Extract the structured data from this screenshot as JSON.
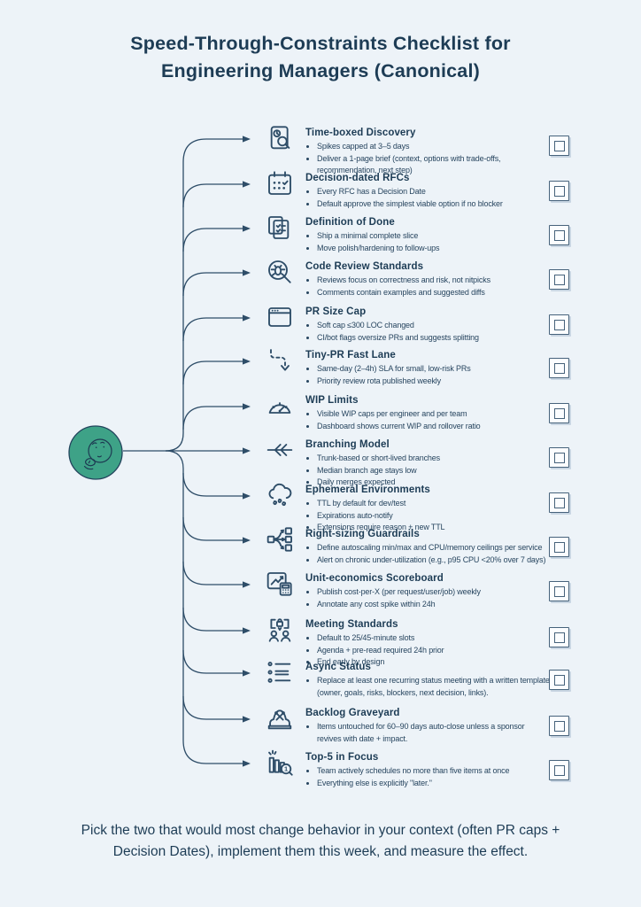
{
  "header": {
    "title_line1": "Speed-Through-Constraints Checklist for",
    "title_line2": "Engineering Managers (Canonical)"
  },
  "colors": {
    "background": "#edf3f8",
    "text_dark": "#1d3c55",
    "connector_line": "#2e4d68",
    "center_node_green": "#3ea287",
    "checkbox_border": "#46627b"
  },
  "center_node": {
    "icon": "thinking-face-icon"
  },
  "items": [
    {
      "title": "Time-boxed Discovery",
      "icon": "document-search-icon",
      "bullets": [
        "Spikes capped at 3–5 days",
        "Deliver a 1-page brief (context, options with trade-offs, recommendation, next step)"
      ]
    },
    {
      "title": "Decision-dated RFCs",
      "icon": "calendar-check-icon",
      "bullets": [
        "Every RFC has a Decision Date",
        "Default approve the simplest viable option if no blocker"
      ]
    },
    {
      "title": "Definition of Done",
      "icon": "checklist-pages-icon",
      "bullets": [
        "Ship a minimal complete slice",
        "Move polish/hardening to follow-ups"
      ]
    },
    {
      "title": "Code Review Standards",
      "icon": "bug-magnifier-icon",
      "bullets": [
        "Reviews focus on correctness and risk, not nitpicks",
        "Comments contain examples and suggested diffs"
      ]
    },
    {
      "title": "PR Size Cap",
      "icon": "browser-window-icon",
      "bullets": [
        "Soft cap ≤300 LOC changed",
        "CI/bot flags oversize PRs and suggests splitting"
      ]
    },
    {
      "title": "Tiny-PR Fast Lane",
      "icon": "dashed-arrow-icon",
      "bullets": [
        "Same-day (2–4h) SLA for small, low-risk PRs",
        "Priority review rota published weekly"
      ]
    },
    {
      "title": "WIP Limits",
      "icon": "gauge-icon",
      "bullets": [
        "Visible WIP caps per engineer and per team",
        "Dashboard shows current WIP and rollover ratio"
      ]
    },
    {
      "title": "Branching Model",
      "icon": "branch-arrows-icon",
      "bullets": [
        "Trunk-based or short-lived branches",
        "Median branch age stays low",
        "Daily merges expected"
      ]
    },
    {
      "title": "Ephemeral Environments",
      "icon": "rain-cloud-icon",
      "bullets": [
        "TTL by default for dev/test",
        "Expirations auto-notify",
        "Extensions require reason + new TTL"
      ]
    },
    {
      "title": "Right-sizing Guardrails",
      "icon": "fan-out-icon",
      "bullets": [
        "Define autoscaling min/max and CPU/memory ceilings per service",
        "Alert on chronic under-utilization (e.g., p95 CPU <20% over 7 days)"
      ]
    },
    {
      "title": "Unit-economics Scoreboard",
      "icon": "chart-calculator-icon",
      "bullets": [
        "Publish cost-per-X (per request/user/job) weekly",
        "Annotate any cost spike within 24h"
      ]
    },
    {
      "title": "Meeting Standards",
      "icon": "meeting-lock-icon",
      "bullets": [
        "Default to 25/45-minute slots",
        "Agenda + pre-read required 24h prior",
        "End early by design"
      ]
    },
    {
      "title": "Async Status",
      "icon": "bulleted-list-icon",
      "bullets": [
        "Replace at least one recurring status meeting with a written template (owner, goals, risks, blockers, next decision, links)."
      ]
    },
    {
      "title": "Backlog Graveyard",
      "icon": "gravestone-icon",
      "bullets": [
        "Items untouched for 60–90 days auto-close unless a sponsor revives with date + impact."
      ]
    },
    {
      "title": "Top-5 in Focus",
      "icon": "bar-chart-magnifier-icon",
      "bullets": [
        "Team actively schedules no more than five items at once",
        "Everything else is explicitly \"later.\""
      ]
    }
  ],
  "footer": {
    "note": "Pick the two that would most change behavior in your context (often PR caps + Decision Dates), implement them this week, and measure the effect."
  }
}
